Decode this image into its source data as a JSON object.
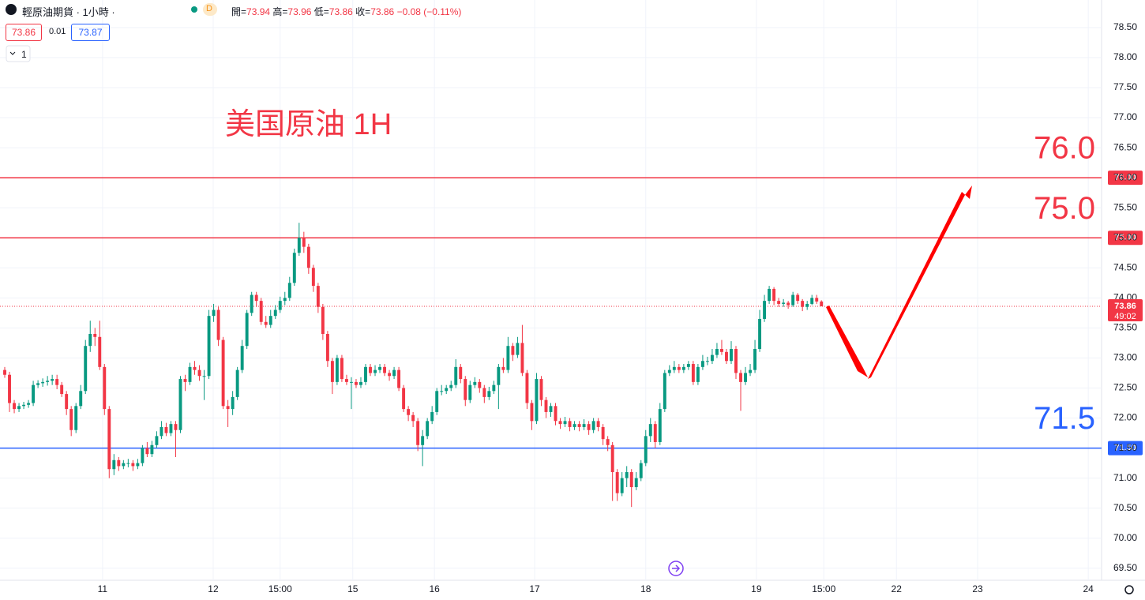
{
  "header": {
    "symbol": "輕原油期貨 · 1小時 ·",
    "badge": "D",
    "open_label": "開=",
    "open": 73.94,
    "high_label": "高=",
    "high": 73.96,
    "low_label": "低=",
    "low": 73.86,
    "close_label": "收=",
    "close": 73.86,
    "change": "−0.08 (−0.11%)",
    "bid": 73.86,
    "spread": 0.01,
    "ask": 73.87,
    "quantity": "1"
  },
  "chart_data": {
    "type": "candlestick",
    "annotation": "美国原油 1H",
    "up_color": "#089981",
    "down_color": "#f23645",
    "grid": true,
    "xlim": [
      -1,
      231
    ],
    "ylim": [
      69.3,
      79.0
    ],
    "xticks": [
      {
        "value": 20.6,
        "label": "11"
      },
      {
        "value": 43.9,
        "label": "12"
      },
      {
        "value": 58.0,
        "label": "15:00"
      },
      {
        "value": 73.3,
        "label": "15"
      },
      {
        "value": 90.5,
        "label": "16"
      },
      {
        "value": 111.6,
        "label": "17"
      },
      {
        "value": 135.0,
        "label": "18"
      },
      {
        "value": 158.3,
        "label": "19"
      },
      {
        "value": 172.5,
        "label": "15:00"
      },
      {
        "value": 187.8,
        "label": "22"
      },
      {
        "value": 204.9,
        "label": "23"
      },
      {
        "value": 228.2,
        "label": "24"
      }
    ],
    "yticks": [
      {
        "value": 69.5,
        "label": "69.50"
      },
      {
        "value": 70,
        "label": "70.00"
      },
      {
        "value": 70.5,
        "label": "70.50"
      },
      {
        "value": 71,
        "label": "71.00"
      },
      {
        "value": 71.5,
        "label": "71.50"
      },
      {
        "value": 72,
        "label": "72.00"
      },
      {
        "value": 72.5,
        "label": "72.50"
      },
      {
        "value": 73,
        "label": "73.00"
      },
      {
        "value": 73.5,
        "label": "73.50"
      },
      {
        "value": 74,
        "label": "74.00"
      },
      {
        "value": 74.5,
        "label": "74.50"
      },
      {
        "value": 75,
        "label": "75.00"
      },
      {
        "value": 75.5,
        "label": "75.50"
      },
      {
        "value": 76,
        "label": "76.00"
      },
      {
        "value": 76.5,
        "label": "76.50"
      },
      {
        "value": 77,
        "label": "77.00"
      },
      {
        "value": 77.5,
        "label": "77.50"
      },
      {
        "value": 78,
        "label": "78.00"
      },
      {
        "value": 78.5,
        "label": "78.50"
      }
    ],
    "hlines": [
      {
        "value": 76,
        "label": "76.0",
        "tag": "76.00",
        "color": "#f23645"
      },
      {
        "value": 75,
        "label": "75.0",
        "tag": "75.00",
        "color": "#f23645"
      },
      {
        "value": 71.5,
        "label": "71.5",
        "tag": "71.50",
        "color": "#2962ff"
      }
    ],
    "last": {
      "value": 73.86,
      "countdown": "49:02",
      "color": "#f23645"
    },
    "open": [
      72.8,
      72.72,
      72.25,
      72.15,
      72.2,
      72.22,
      72.25,
      72.55,
      72.58,
      72.6,
      72.62,
      72.65,
      72.55,
      72.4,
      72.15,
      71.8,
      72.2,
      72.45,
      73.2,
      73.4,
      73.35,
      72.85,
      72.15,
      71.15,
      71.3,
      71.2,
      71.25,
      71.25,
      71.2,
      71.25,
      71.5,
      71.4,
      71.55,
      71.7,
      71.85,
      71.75,
      71.9,
      71.8,
      72.65,
      72.6,
      72.85,
      72.8,
      72.7,
      72.7,
      73.7,
      73.8,
      73.3,
      72.2,
      72.15,
      72.35,
      72.8,
      73.2,
      73.75,
      74.05,
      73.95,
      73.6,
      73.55,
      73.7,
      73.8,
      73.95,
      74.0,
      74.25,
      74.75,
      75.0,
      74.85,
      74.5,
      74.2,
      73.85,
      73.4,
      72.95,
      72.6,
      73.0,
      72.65,
      72.6,
      72.6,
      72.55,
      72.6,
      72.85,
      72.75,
      72.8,
      72.85,
      72.75,
      72.7,
      72.8,
      72.5,
      72.15,
      72.05,
      71.95,
      71.55,
      71.7,
      71.95,
      72.1,
      72.45,
      72.45,
      72.5,
      72.55,
      72.85,
      72.65,
      72.3,
      72.55,
      72.6,
      72.5,
      72.35,
      72.45,
      72.55,
      72.85,
      72.8,
      73.2,
      73.05,
      73.25,
      72.75,
      72.25,
      71.95,
      72.65,
      72.3,
      72.1,
      72.2,
      71.95,
      71.9,
      71.95,
      71.85,
      71.9,
      71.85,
      71.9,
      71.8,
      71.95,
      71.85,
      71.65,
      71.55,
      71.1,
      70.75,
      71.0,
      71.1,
      70.85,
      71.0,
      71.25,
      71.7,
      71.9,
      71.6,
      72.15,
      72.75,
      72.8,
      72.85,
      72.8,
      72.85,
      72.9,
      72.6,
      72.85,
      72.95,
      72.95,
      73.05,
      73.15,
      73.1,
      72.95,
      73.15,
      72.75,
      72.6,
      72.75,
      72.8,
      73.15,
      73.65,
      73.95,
      74.15,
      73.95,
      73.9,
      73.92,
      73.88,
      74.05,
      73.95,
      73.85,
      73.9,
      74.0,
      73.94
    ],
    "high": [
      72.85,
      72.77,
      72.3,
      72.25,
      72.27,
      72.3,
      72.62,
      72.63,
      72.66,
      72.7,
      72.72,
      72.72,
      72.6,
      72.45,
      72.2,
      72.25,
      72.55,
      73.3,
      73.62,
      73.5,
      73.62,
      72.9,
      72.2,
      71.4,
      71.35,
      71.3,
      71.32,
      71.3,
      71.32,
      71.55,
      71.6,
      71.62,
      71.78,
      71.95,
      71.92,
      71.95,
      71.95,
      72.7,
      72.72,
      72.92,
      72.95,
      72.88,
      72.8,
      73.8,
      73.9,
      73.85,
      73.35,
      72.3,
      72.45,
      72.85,
      73.3,
      73.8,
      74.1,
      74.1,
      74.0,
      73.7,
      73.8,
      73.88,
      74.02,
      74.1,
      74.35,
      74.82,
      75.25,
      75.1,
      74.9,
      74.55,
      74.25,
      73.9,
      73.45,
      73.0,
      73.05,
      73.05,
      72.72,
      72.68,
      72.65,
      72.68,
      72.9,
      72.9,
      72.88,
      72.9,
      72.9,
      72.8,
      72.85,
      72.85,
      72.55,
      72.2,
      72.1,
      72.0,
      71.8,
      72.0,
      72.2,
      72.5,
      72.55,
      72.55,
      72.62,
      72.98,
      72.9,
      72.7,
      72.62,
      72.68,
      72.65,
      72.55,
      72.52,
      72.62,
      72.9,
      73.0,
      73.35,
      73.25,
      73.35,
      73.55,
      72.8,
      72.3,
      72.75,
      72.7,
      72.35,
      72.25,
      72.25,
      72.0,
      72.02,
      72.0,
      71.95,
      71.95,
      71.98,
      71.95,
      72.0,
      72.0,
      71.9,
      71.7,
      71.6,
      71.15,
      71.1,
      71.2,
      71.15,
      71.1,
      71.3,
      71.8,
      72.0,
      71.95,
      72.25,
      72.8,
      72.88,
      72.95,
      72.9,
      72.9,
      72.95,
      72.95,
      72.9,
      73.05,
      73.02,
      73.15,
      73.25,
      73.3,
      73.15,
      73.28,
      73.2,
      72.8,
      72.85,
      72.9,
      73.3,
      73.8,
      74.05,
      74.2,
      74.18,
      74.0,
      73.98,
      73.95,
      74.1,
      74.08,
      73.98,
      73.95,
      74.05,
      74.05,
      73.96
    ],
    "low": [
      72.67,
      72.1,
      72.08,
      72.1,
      72.15,
      72.17,
      72.2,
      72.5,
      72.52,
      72.54,
      72.55,
      72.48,
      72.35,
      72.05,
      71.7,
      71.75,
      72.15,
      72.4,
      73.1,
      73.2,
      72.8,
      72.05,
      71.0,
      71.05,
      71.12,
      71.15,
      71.18,
      71.12,
      71.15,
      71.2,
      71.35,
      71.35,
      71.5,
      71.65,
      71.7,
      71.7,
      71.35,
      71.75,
      72.45,
      72.55,
      72.72,
      72.62,
      72.3,
      72.65,
      73.6,
      73.2,
      72.15,
      71.85,
      72.05,
      72.3,
      72.75,
      73.15,
      73.7,
      73.85,
      73.55,
      73.5,
      73.5,
      73.65,
      73.75,
      73.88,
      73.95,
      74.2,
      74.7,
      74.75,
      74.4,
      74.1,
      73.75,
      73.3,
      72.85,
      72.4,
      72.55,
      72.6,
      72.55,
      72.15,
      72.5,
      72.5,
      72.55,
      72.7,
      72.7,
      72.75,
      72.7,
      72.62,
      72.65,
      72.45,
      72.1,
      71.95,
      71.85,
      71.45,
      71.2,
      71.65,
      71.9,
      72.05,
      72.38,
      72.4,
      72.45,
      72.5,
      72.58,
      72.2,
      72.25,
      72.5,
      72.42,
      72.25,
      72.3,
      72.4,
      72.15,
      72.75,
      72.75,
      72.95,
      73.0,
      72.7,
      72.15,
      71.8,
      71.9,
      72.2,
      72.0,
      72.02,
      71.88,
      71.82,
      71.85,
      71.78,
      71.8,
      71.78,
      71.8,
      71.72,
      71.75,
      71.78,
      71.55,
      71.45,
      70.62,
      70.62,
      70.7,
      70.85,
      70.52,
      70.8,
      70.95,
      71.2,
      71.6,
      71.5,
      71.55,
      72.1,
      72.7,
      72.75,
      72.75,
      72.75,
      72.8,
      72.55,
      72.55,
      72.8,
      72.88,
      72.9,
      73.0,
      73.05,
      72.9,
      72.9,
      72.65,
      72.12,
      72.55,
      72.7,
      72.75,
      73.1,
      73.6,
      73.9,
      73.88,
      73.85,
      73.85,
      73.82,
      73.85,
      73.9,
      73.78,
      73.8,
      73.88,
      73.9,
      73.86
    ],
    "close": [
      72.72,
      72.25,
      72.15,
      72.2,
      72.22,
      72.25,
      72.55,
      72.58,
      72.6,
      72.62,
      72.65,
      72.55,
      72.4,
      72.15,
      71.8,
      72.2,
      72.45,
      73.2,
      73.4,
      73.35,
      72.85,
      72.15,
      71.15,
      71.3,
      71.2,
      71.25,
      71.25,
      71.2,
      71.25,
      71.5,
      71.4,
      71.55,
      71.7,
      71.85,
      71.75,
      71.9,
      71.8,
      72.65,
      72.6,
      72.85,
      72.8,
      72.7,
      72.7,
      73.7,
      73.8,
      73.3,
      72.2,
      72.15,
      72.35,
      72.8,
      73.2,
      73.75,
      74.05,
      73.95,
      73.6,
      73.55,
      73.7,
      73.8,
      73.95,
      74.0,
      74.25,
      74.75,
      75.0,
      74.85,
      74.5,
      74.2,
      73.85,
      73.4,
      72.95,
      72.6,
      73.0,
      72.65,
      72.6,
      72.6,
      72.55,
      72.6,
      72.85,
      72.75,
      72.8,
      72.85,
      72.75,
      72.7,
      72.8,
      72.5,
      72.15,
      72.05,
      71.95,
      71.55,
      71.7,
      71.95,
      72.1,
      72.45,
      72.45,
      72.5,
      72.55,
      72.85,
      72.65,
      72.3,
      72.55,
      72.6,
      72.5,
      72.35,
      72.45,
      72.55,
      72.85,
      72.8,
      73.2,
      73.05,
      73.25,
      72.75,
      72.25,
      71.95,
      72.65,
      72.3,
      72.1,
      72.2,
      71.95,
      71.9,
      71.95,
      71.85,
      71.9,
      71.85,
      71.9,
      71.8,
      71.95,
      71.85,
      71.65,
      71.55,
      71.1,
      70.75,
      71.0,
      71.1,
      70.85,
      71.0,
      71.25,
      71.7,
      71.9,
      71.6,
      72.15,
      72.75,
      72.8,
      72.85,
      72.8,
      72.85,
      72.9,
      72.6,
      72.85,
      72.95,
      72.95,
      73.05,
      73.15,
      73.1,
      72.95,
      73.15,
      72.75,
      72.6,
      72.75,
      72.8,
      73.15,
      73.65,
      73.95,
      74.15,
      73.95,
      73.9,
      73.92,
      73.88,
      74.05,
      73.95,
      73.85,
      73.9,
      74.0,
      73.94,
      73.86
    ]
  }
}
